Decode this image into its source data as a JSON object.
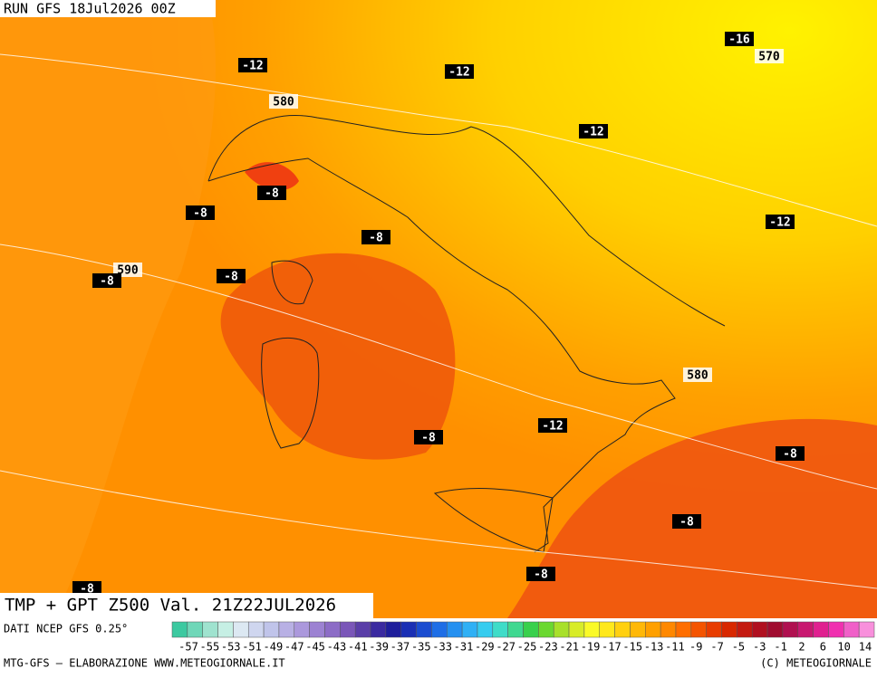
{
  "header": {
    "run": "RUN GFS 18Jul2026 00Z"
  },
  "map_labels": [
    -12,
    580,
    -12,
    -16,
    570,
    -12,
    -8,
    -8,
    -8,
    -12,
    590,
    -8,
    -8,
    580,
    -12,
    -8,
    -8,
    -8,
    -8,
    -8
  ],
  "footer": {
    "title": "TMP + GPT Z500 Val. 21Z22JUL2026",
    "source": "DATI NCEP GFS 0.25°",
    "credit": "MTG-GFS — ELABORAZIONE WWW.METEOGIORNALE.IT",
    "copyright": "(C) METEOGIORNALE"
  },
  "colorbar": {
    "labels": [
      -57,
      -55,
      -53,
      -51,
      -49,
      -47,
      -45,
      -43,
      -41,
      -39,
      -37,
      -35,
      -33,
      -31,
      -29,
      -27,
      -25,
      -23,
      -21,
      -19,
      -17,
      -15,
      -13,
      -11,
      -9,
      -7,
      -5,
      -3,
      -1,
      2,
      6,
      10,
      14
    ],
    "colors": [
      "#3cc9a0",
      "#6fd7b8",
      "#9fe3cf",
      "#c6efe4",
      "#dce8f2",
      "#cfd6ef",
      "#c0c4ea",
      "#b8b0e4",
      "#ab98dc",
      "#9c82d2",
      "#8c6cc6",
      "#7a56b8",
      "#5a3ea8",
      "#3a2aa0",
      "#1e1e9c",
      "#1a2fb4",
      "#1a4cd0",
      "#1e6ee6",
      "#2590f0",
      "#2fb0f5",
      "#36ccef",
      "#3fdcc8",
      "#3fd890",
      "#38d04c",
      "#6ad830",
      "#a8e02a",
      "#d8ec28",
      "#fafa28",
      "#ffe81c",
      "#ffd010",
      "#ffb808",
      "#ffa000",
      "#ff8800",
      "#ff6e00",
      "#f45400",
      "#e83c00",
      "#d82800",
      "#c41a10",
      "#b01020",
      "#a00c30",
      "#b01050",
      "#c81870",
      "#e02090",
      "#f030b0",
      "#f060c8",
      "#f890dc"
    ]
  }
}
